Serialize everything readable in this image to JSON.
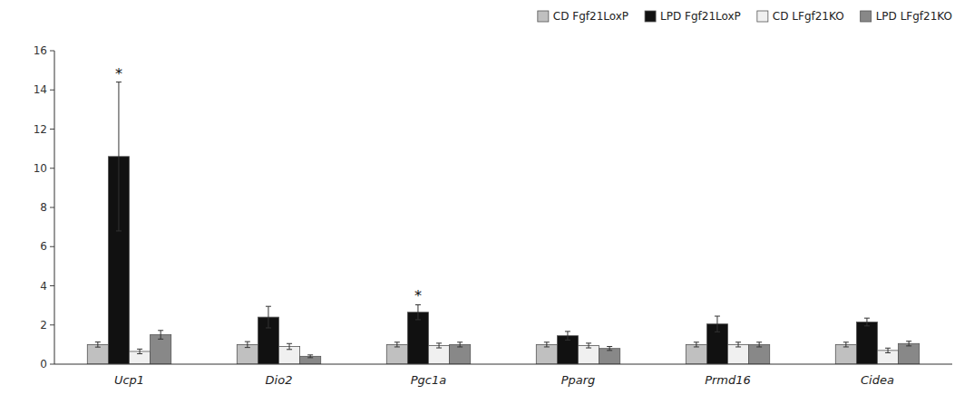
{
  "chart_data": {
    "type": "bar",
    "categories": [
      "Ucp1",
      "Dio2",
      "Pgc1a",
      "Pparg",
      "Prmd16",
      "Cidea"
    ],
    "series": [
      {
        "name": "CD Fgf21LoxP",
        "color": "#c0c0c0",
        "values": [
          1.0,
          1.0,
          1.0,
          1.0,
          1.0,
          1.0
        ],
        "errors": [
          0.13,
          0.15,
          0.12,
          0.12,
          0.12,
          0.12
        ]
      },
      {
        "name": "LPD Fgf21LoxP",
        "color": "#111111",
        "values": [
          10.6,
          2.4,
          2.65,
          1.45,
          2.05,
          2.15
        ],
        "errors": [
          3.8,
          0.55,
          0.38,
          0.22,
          0.4,
          0.2
        ]
      },
      {
        "name": "CD LFgf21KO",
        "color": "#f0f0f0",
        "values": [
          0.65,
          0.9,
          0.95,
          0.95,
          1.0,
          0.7
        ],
        "errors": [
          0.12,
          0.15,
          0.12,
          0.12,
          0.12,
          0.12
        ]
      },
      {
        "name": "LPD LFgf21KO",
        "color": "#888888",
        "values": [
          1.5,
          0.4,
          1.0,
          0.8,
          1.0,
          1.05
        ],
        "errors": [
          0.22,
          0.07,
          0.12,
          0.1,
          0.12,
          0.12
        ]
      }
    ],
    "ylim": [
      0,
      16
    ],
    "yticks": [
      0,
      2,
      4,
      6,
      8,
      10,
      12,
      14,
      16
    ],
    "annotations": [
      {
        "text": "*",
        "category": "Ucp1",
        "series": "LPD Fgf21LoxP"
      },
      {
        "text": "*",
        "category": "Pgc1a",
        "series": "LPD Fgf21LoxP"
      }
    ],
    "legend": "upper right",
    "grid": false
  }
}
